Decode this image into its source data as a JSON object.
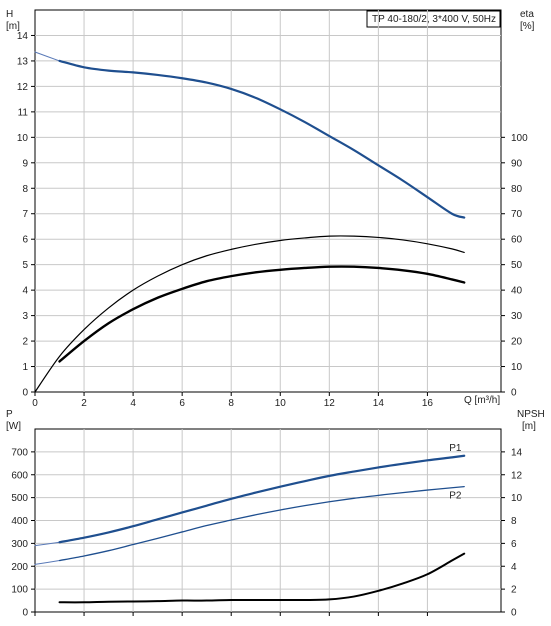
{
  "chart_data": [
    {
      "type": "line",
      "title": "TP 40-180/2, 3*400 V, 50Hz",
      "x_axis": {
        "label": "Q [m³/h]",
        "range": [
          0,
          19
        ],
        "ticks": [
          0,
          2,
          4,
          6,
          8,
          10,
          12,
          14,
          16
        ]
      },
      "y_left": {
        "label_top": "H",
        "label_unit": "[m]",
        "range": [
          0,
          15
        ],
        "ticks": [
          0,
          1,
          2,
          3,
          4,
          5,
          6,
          7,
          8,
          9,
          10,
          11,
          12,
          13,
          14
        ]
      },
      "y_right": {
        "label_top": "eta",
        "label_unit": "[%]",
        "range": [
          0,
          100
        ],
        "ticks": [
          0,
          10,
          20,
          30,
          40,
          50,
          60,
          70,
          80,
          90,
          100
        ]
      },
      "grid": true,
      "series": [
        {
          "axis": "left",
          "style": "head-extension",
          "color": "#5a7ab8",
          "points": [
            [
              0,
              13.35
            ],
            [
              1,
              13.0
            ]
          ]
        },
        {
          "axis": "left",
          "style": "head",
          "color": "#1f4f8f",
          "points": [
            [
              1,
              13.0
            ],
            [
              2,
              12.75
            ],
            [
              3,
              12.62
            ],
            [
              4,
              12.55
            ],
            [
              5,
              12.45
            ],
            [
              6,
              12.32
            ],
            [
              7,
              12.15
            ],
            [
              8,
              11.9
            ],
            [
              9,
              11.55
            ],
            [
              10,
              11.1
            ],
            [
              11,
              10.6
            ],
            [
              12,
              10.05
            ],
            [
              13,
              9.5
            ],
            [
              14,
              8.9
            ],
            [
              15,
              8.3
            ],
            [
              16,
              7.65
            ],
            [
              17,
              7.0
            ],
            [
              17.5,
              6.85
            ]
          ]
        },
        {
          "axis": "right",
          "style": "eta-thin",
          "color": "#000000",
          "points": [
            [
              0,
              0
            ],
            [
              1,
              14
            ],
            [
              2,
              24.5
            ],
            [
              3,
              33
            ],
            [
              4,
              40
            ],
            [
              5,
              45.5
            ],
            [
              6,
              50
            ],
            [
              7,
              53.5
            ],
            [
              8,
              56
            ],
            [
              9,
              58
            ],
            [
              10,
              59.5
            ],
            [
              11,
              60.5
            ],
            [
              12,
              61.2
            ],
            [
              13,
              61.2
            ],
            [
              14,
              60.7
            ],
            [
              15,
              59.7
            ],
            [
              16,
              58.2
            ],
            [
              17,
              56.2
            ],
            [
              17.5,
              54.8
            ]
          ]
        },
        {
          "axis": "right",
          "style": "eta-thick",
          "color": "#000000",
          "points": [
            [
              1,
              12
            ],
            [
              2,
              20
            ],
            [
              3,
              27
            ],
            [
              4,
              32.5
            ],
            [
              5,
              37
            ],
            [
              6,
              40.5
            ],
            [
              7,
              43.5
            ],
            [
              8,
              45.5
            ],
            [
              9,
              47
            ],
            [
              10,
              48
            ],
            [
              11,
              48.7
            ],
            [
              12,
              49.2
            ],
            [
              13,
              49.2
            ],
            [
              14,
              48.7
            ],
            [
              15,
              47.8
            ],
            [
              16,
              46.4
            ],
            [
              17,
              44.2
            ],
            [
              17.5,
              43
            ]
          ]
        }
      ]
    },
    {
      "type": "line",
      "x_axis": {
        "range": [
          0,
          19
        ],
        "ticks": [
          0,
          2,
          4,
          6,
          8,
          10,
          12,
          14,
          16
        ]
      },
      "y_left": {
        "label_top": "P",
        "label_unit": "[W]",
        "range": [
          0,
          800
        ],
        "ticks": [
          0,
          100,
          200,
          300,
          400,
          500,
          600,
          700
        ]
      },
      "y_right": {
        "label_top": "NPSH",
        "label_unit": "[m]",
        "range": [
          0,
          16
        ],
        "ticks": [
          0,
          2,
          4,
          6,
          8,
          10,
          12,
          14
        ]
      },
      "grid": true,
      "series": [
        {
          "axis": "left",
          "style": "p1-extension",
          "color": "#5a7ab8",
          "points": [
            [
              0,
              290
            ],
            [
              1,
              305
            ]
          ]
        },
        {
          "axis": "left",
          "style": "p1",
          "name": "P1",
          "color": "#1f4f8f",
          "points": [
            [
              1,
              305
            ],
            [
              2,
              325
            ],
            [
              3,
              348
            ],
            [
              4,
              375
            ],
            [
              5,
              405
            ],
            [
              6,
              435
            ],
            [
              7,
              465
            ],
            [
              8,
              495
            ],
            [
              9,
              522
            ],
            [
              10,
              548
            ],
            [
              11,
              572
            ],
            [
              12,
              595
            ],
            [
              13,
              614
            ],
            [
              14,
              632
            ],
            [
              15,
              648
            ],
            [
              16,
              663
            ],
            [
              17,
              676
            ],
            [
              17.5,
              683
            ]
          ]
        },
        {
          "axis": "left",
          "style": "p2-extension",
          "color": "#5a7ab8",
          "points": [
            [
              0,
              208
            ],
            [
              1,
              225
            ]
          ]
        },
        {
          "axis": "left",
          "style": "p2",
          "name": "P2",
          "color": "#1f4f8f",
          "points": [
            [
              1,
              225
            ],
            [
              2,
              245
            ],
            [
              3,
              268
            ],
            [
              4,
              295
            ],
            [
              5,
              322
            ],
            [
              6,
              350
            ],
            [
              7,
              378
            ],
            [
              8,
              402
            ],
            [
              9,
              425
            ],
            [
              10,
              446
            ],
            [
              11,
              465
            ],
            [
              12,
              482
            ],
            [
              13,
              497
            ],
            [
              14,
              510
            ],
            [
              15,
              522
            ],
            [
              16,
              533
            ],
            [
              17,
              543
            ],
            [
              17.5,
              548
            ]
          ]
        },
        {
          "axis": "right",
          "style": "npsh",
          "color": "#000000",
          "points": [
            [
              1,
              0.85
            ],
            [
              2,
              0.85
            ],
            [
              3,
              0.9
            ],
            [
              4,
              0.92
            ],
            [
              5,
              0.95
            ],
            [
              6,
              1.0
            ],
            [
              7,
              1.0
            ],
            [
              8,
              1.05
            ],
            [
              9,
              1.05
            ],
            [
              10,
              1.05
            ],
            [
              11,
              1.05
            ],
            [
              12,
              1.1
            ],
            [
              13,
              1.35
            ],
            [
              14,
              1.85
            ],
            [
              15,
              2.5
            ],
            [
              16,
              3.3
            ],
            [
              17,
              4.5
            ],
            [
              17.5,
              5.1
            ]
          ]
        }
      ]
    }
  ]
}
